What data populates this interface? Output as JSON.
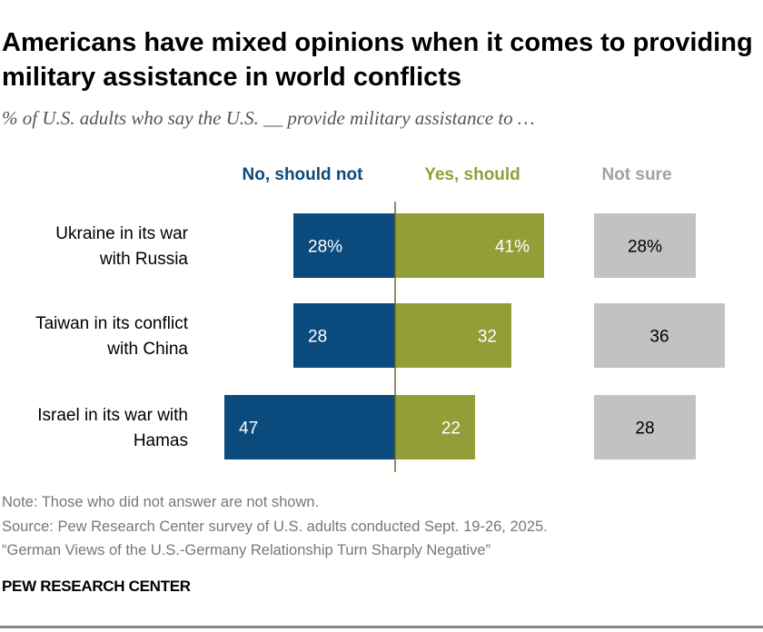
{
  "title": "Americans have mixed opinions when it comes to providing military assistance in world conflicts",
  "subtitle": "% of U.S. adults who say the U.S. __ provide military assistance to …",
  "chart_data": {
    "type": "bar",
    "orientation": "horizontal-diverging",
    "categories": [
      "Ukraine in its war with Russia",
      "Taiwan in its conflict with China",
      "Israel in its war with Hamas"
    ],
    "category_lines": [
      [
        "Ukraine in its war",
        "with Russia"
      ],
      [
        "Taiwan in its conflict",
        "with China"
      ],
      [
        "Israel in its war with",
        "Hamas"
      ]
    ],
    "series": [
      {
        "name": "No, should not",
        "values": [
          28,
          28,
          47
        ],
        "labels": [
          "28%",
          "28",
          "47"
        ],
        "color": "#0b4a7d"
      },
      {
        "name": "Yes, should",
        "values": [
          41,
          32,
          22
        ],
        "labels": [
          "41%",
          "32",
          "22"
        ],
        "color": "#939e39"
      },
      {
        "name": "Not sure",
        "values": [
          28,
          36,
          28
        ],
        "labels": [
          "28%",
          "36",
          "28"
        ],
        "color": "#c2c2c2"
      }
    ],
    "series_label_colors": [
      "#0b4a7d",
      "#939e39",
      "#a0a0a0"
    ],
    "grid": false
  },
  "footer": {
    "note": "Note: Those who did not answer are not shown.",
    "source": "Source: Pew Research Center survey of U.S. adults conducted Sept. 19-26, 2025.",
    "report": "“German Views of the U.S.-Germany Relationship Turn Sharply Negative”",
    "brand": "PEW RESEARCH CENTER"
  }
}
